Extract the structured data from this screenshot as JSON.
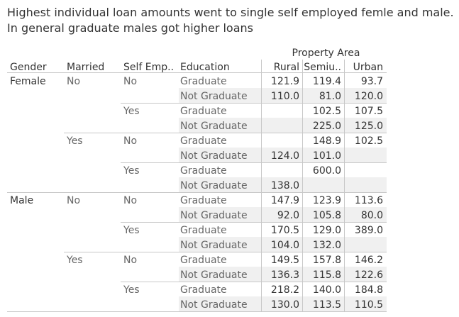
{
  "title_lines": [
    "Highest individual loan amounts went to single self employed femle and male.",
    "In general graduate males got higher loans"
  ],
  "colors": {
    "title": "#333333",
    "header": "#333333",
    "dim_text": "#666666",
    "gender_text": "#333333",
    "value_text": "#333333",
    "band": "#f0f0f0",
    "divider": "#c8c8c8"
  },
  "chart_data": {
    "type": "table",
    "column_group_header": "Property Area",
    "row_headers": [
      "Gender",
      "Married",
      "Self Emp..",
      "Education"
    ],
    "columns": [
      "Rural",
      "Semiu..",
      "Urban"
    ],
    "rows": [
      {
        "gender": "Female",
        "married": "No",
        "self_employed": "No",
        "education": "Graduate",
        "values": [
          "121.9",
          "119.4",
          "93.7"
        ]
      },
      {
        "gender": "",
        "married": "",
        "self_employed": "",
        "education": "Not Graduate",
        "values": [
          "110.0",
          "81.0",
          "120.0"
        ]
      },
      {
        "gender": "",
        "married": "",
        "self_employed": "Yes",
        "education": "Graduate",
        "values": [
          "",
          "102.5",
          "107.5"
        ]
      },
      {
        "gender": "",
        "married": "",
        "self_employed": "",
        "education": "Not Graduate",
        "values": [
          "",
          "225.0",
          "125.0"
        ]
      },
      {
        "gender": "",
        "married": "Yes",
        "self_employed": "No",
        "education": "Graduate",
        "values": [
          "",
          "148.9",
          "102.5"
        ]
      },
      {
        "gender": "",
        "married": "",
        "self_employed": "",
        "education": "Not Graduate",
        "values": [
          "124.0",
          "101.0",
          ""
        ]
      },
      {
        "gender": "",
        "married": "",
        "self_employed": "Yes",
        "education": "Graduate",
        "values": [
          "",
          "600.0",
          ""
        ]
      },
      {
        "gender": "",
        "married": "",
        "self_employed": "",
        "education": "Not Graduate",
        "values": [
          "138.0",
          "",
          ""
        ]
      },
      {
        "gender": "Male",
        "married": "No",
        "self_employed": "No",
        "education": "Graduate",
        "values": [
          "147.9",
          "123.9",
          "113.6"
        ]
      },
      {
        "gender": "",
        "married": "",
        "self_employed": "",
        "education": "Not Graduate",
        "values": [
          "92.0",
          "105.8",
          "80.0"
        ]
      },
      {
        "gender": "",
        "married": "",
        "self_employed": "Yes",
        "education": "Graduate",
        "values": [
          "170.5",
          "129.0",
          "389.0"
        ]
      },
      {
        "gender": "",
        "married": "",
        "self_employed": "",
        "education": "Not Graduate",
        "values": [
          "104.0",
          "132.0",
          ""
        ]
      },
      {
        "gender": "",
        "married": "Yes",
        "self_employed": "No",
        "education": "Graduate",
        "values": [
          "149.5",
          "157.8",
          "146.2"
        ]
      },
      {
        "gender": "",
        "married": "",
        "self_employed": "",
        "education": "Not Graduate",
        "values": [
          "136.3",
          "115.8",
          "122.6"
        ]
      },
      {
        "gender": "",
        "married": "",
        "self_employed": "Yes",
        "education": "Graduate",
        "values": [
          "218.2",
          "140.0",
          "184.8"
        ]
      },
      {
        "gender": "",
        "married": "",
        "self_employed": "",
        "education": "Not Graduate",
        "values": [
          "130.0",
          "113.5",
          "110.5"
        ]
      }
    ]
  }
}
